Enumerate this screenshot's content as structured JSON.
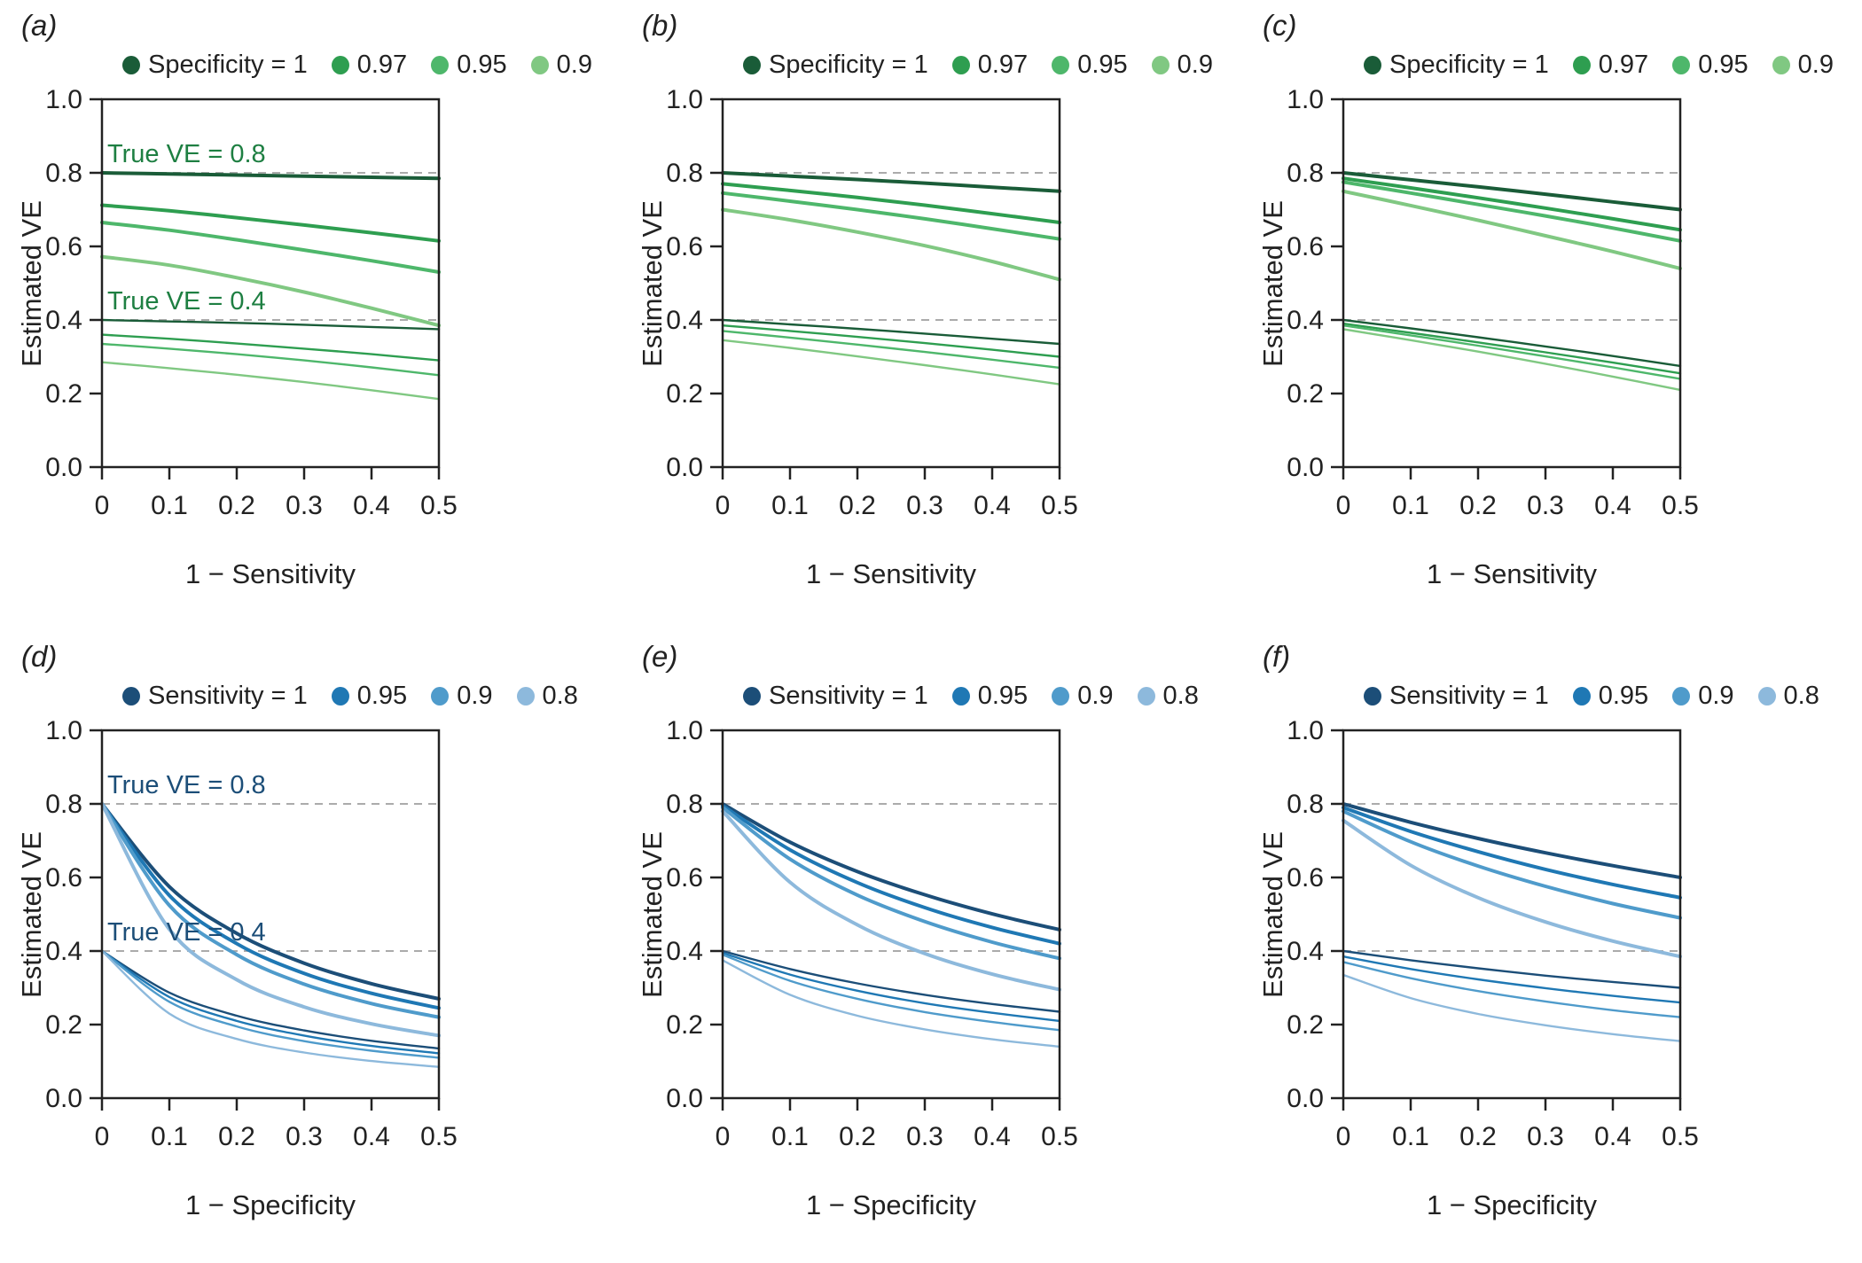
{
  "figure": {
    "yticks": [
      "0.0",
      "0.2",
      "0.4",
      "0.6",
      "0.8",
      "1.0"
    ],
    "xticks": [
      "0",
      "0.1",
      "0.2",
      "0.3",
      "0.4",
      "0.5"
    ],
    "palettes": {
      "greens": [
        "#1a5c38",
        "#2e9e50",
        "#4eb76b",
        "#80c882"
      ],
      "blues": [
        "#1c4e78",
        "#1f78b4",
        "#4f9bcb",
        "#8db9dc"
      ]
    },
    "annotation_colors": {
      "greens": "#1e7f42",
      "blues": "#1c4e78"
    },
    "axis_color": "#222222",
    "grid_color": "#ababab"
  },
  "chart_data": [
    {
      "type": "line",
      "panel_label": "(a)",
      "palette": "greens",
      "xlabel": "1 − Sensitivity",
      "ylabel": "Estimated VE",
      "xlim": [
        0,
        0.5
      ],
      "ylim": [
        0,
        1
      ],
      "x": [
        0,
        0.1,
        0.2,
        0.3,
        0.4,
        0.5
      ],
      "legend": [
        "Specificity = 1",
        "0.97",
        "0.95",
        "0.9"
      ],
      "reference_lines": [
        {
          "y": 0.8,
          "label": "True VE = 0.8"
        },
        {
          "y": 0.4,
          "label": "True VE = 0.4"
        }
      ],
      "series": [
        {
          "name": "Specificity = 1",
          "true_ve": 0.8,
          "color_index": 0,
          "values": [
            0.8,
            0.797,
            0.794,
            0.791,
            0.788,
            0.785
          ]
        },
        {
          "name": "Specificity = 0.97",
          "true_ve": 0.8,
          "color_index": 1,
          "values": [
            0.712,
            0.697,
            0.678,
            0.658,
            0.637,
            0.615
          ]
        },
        {
          "name": "Specificity = 0.95",
          "true_ve": 0.8,
          "color_index": 2,
          "values": [
            0.665,
            0.644,
            0.618,
            0.59,
            0.561,
            0.53
          ]
        },
        {
          "name": "Specificity = 0.9",
          "true_ve": 0.8,
          "color_index": 3,
          "values": [
            0.572,
            0.549,
            0.515,
            0.476,
            0.432,
            0.385
          ]
        },
        {
          "name": "Specificity = 1",
          "true_ve": 0.4,
          "color_index": 0,
          "values": [
            0.4,
            0.396,
            0.392,
            0.387,
            0.381,
            0.375
          ]
        },
        {
          "name": "Specificity = 0.97",
          "true_ve": 0.4,
          "color_index": 1,
          "values": [
            0.36,
            0.349,
            0.336,
            0.322,
            0.307,
            0.29
          ]
        },
        {
          "name": "Specificity = 0.95",
          "true_ve": 0.4,
          "color_index": 2,
          "values": [
            0.335,
            0.322,
            0.307,
            0.29,
            0.271,
            0.25
          ]
        },
        {
          "name": "Specificity = 0.9",
          "true_ve": 0.4,
          "color_index": 3,
          "values": [
            0.285,
            0.269,
            0.251,
            0.231,
            0.209,
            0.185
          ]
        }
      ]
    },
    {
      "type": "line",
      "panel_label": "(b)",
      "palette": "greens",
      "xlabel": "1 − Sensitivity",
      "ylabel": "Estimated VE",
      "xlim": [
        0,
        0.5
      ],
      "ylim": [
        0,
        1
      ],
      "x": [
        0,
        0.1,
        0.2,
        0.3,
        0.4,
        0.5
      ],
      "legend": [
        "Specificity = 1",
        "0.97",
        "0.95",
        "0.9"
      ],
      "reference_lines": [
        {
          "y": 0.8,
          "label": null
        },
        {
          "y": 0.4,
          "label": null
        }
      ],
      "series": [
        {
          "name": "Specificity = 1",
          "true_ve": 0.8,
          "color_index": 0,
          "values": [
            0.8,
            0.791,
            0.782,
            0.772,
            0.761,
            0.75
          ]
        },
        {
          "name": "Specificity = 0.97",
          "true_ve": 0.8,
          "color_index": 1,
          "values": [
            0.77,
            0.752,
            0.733,
            0.712,
            0.689,
            0.665
          ]
        },
        {
          "name": "Specificity = 0.95",
          "true_ve": 0.8,
          "color_index": 2,
          "values": [
            0.745,
            0.723,
            0.7,
            0.675,
            0.648,
            0.62
          ]
        },
        {
          "name": "Specificity = 0.9",
          "true_ve": 0.8,
          "color_index": 3,
          "values": [
            0.7,
            0.672,
            0.639,
            0.602,
            0.559,
            0.51
          ]
        },
        {
          "name": "Specificity = 1",
          "true_ve": 0.4,
          "color_index": 0,
          "values": [
            0.4,
            0.388,
            0.376,
            0.363,
            0.349,
            0.335
          ]
        },
        {
          "name": "Specificity = 0.97",
          "true_ve": 0.4,
          "color_index": 1,
          "values": [
            0.385,
            0.37,
            0.354,
            0.337,
            0.319,
            0.3
          ]
        },
        {
          "name": "Specificity = 0.95",
          "true_ve": 0.4,
          "color_index": 2,
          "values": [
            0.37,
            0.352,
            0.333,
            0.313,
            0.292,
            0.27
          ]
        },
        {
          "name": "Specificity = 0.9",
          "true_ve": 0.4,
          "color_index": 3,
          "values": [
            0.345,
            0.324,
            0.301,
            0.277,
            0.252,
            0.225
          ]
        }
      ]
    },
    {
      "type": "line",
      "panel_label": "(c)",
      "palette": "greens",
      "xlabel": "1 − Sensitivity",
      "ylabel": "Estimated VE",
      "xlim": [
        0,
        0.5
      ],
      "ylim": [
        0,
        1
      ],
      "x": [
        0,
        0.1,
        0.2,
        0.3,
        0.4,
        0.5
      ],
      "legend": [
        "Specificity = 1",
        "0.97",
        "0.95",
        "0.9"
      ],
      "reference_lines": [
        {
          "y": 0.8,
          "label": null
        },
        {
          "y": 0.4,
          "label": null
        }
      ],
      "series": [
        {
          "name": "Specificity = 1",
          "true_ve": 0.8,
          "color_index": 0,
          "values": [
            0.8,
            0.781,
            0.762,
            0.742,
            0.721,
            0.7
          ]
        },
        {
          "name": "Specificity = 0.97",
          "true_ve": 0.8,
          "color_index": 1,
          "values": [
            0.785,
            0.759,
            0.732,
            0.704,
            0.675,
            0.645
          ]
        },
        {
          "name": "Specificity = 0.95",
          "true_ve": 0.8,
          "color_index": 2,
          "values": [
            0.775,
            0.745,
            0.714,
            0.683,
            0.65,
            0.615
          ]
        },
        {
          "name": "Specificity = 0.9",
          "true_ve": 0.8,
          "color_index": 3,
          "values": [
            0.75,
            0.711,
            0.671,
            0.629,
            0.586,
            0.54
          ]
        },
        {
          "name": "Specificity = 1",
          "true_ve": 0.4,
          "color_index": 0,
          "values": [
            0.4,
            0.377,
            0.353,
            0.328,
            0.302,
            0.275
          ]
        },
        {
          "name": "Specificity = 0.97",
          "true_ve": 0.4,
          "color_index": 1,
          "values": [
            0.39,
            0.365,
            0.339,
            0.312,
            0.284,
            0.255
          ]
        },
        {
          "name": "Specificity = 0.95",
          "true_ve": 0.4,
          "color_index": 2,
          "values": [
            0.385,
            0.358,
            0.33,
            0.301,
            0.271,
            0.24
          ]
        },
        {
          "name": "Specificity = 0.9",
          "true_ve": 0.4,
          "color_index": 3,
          "values": [
            0.375,
            0.345,
            0.314,
            0.281,
            0.246,
            0.21
          ]
        }
      ]
    },
    {
      "type": "line",
      "panel_label": "(d)",
      "palette": "blues",
      "xlabel": "1 − Specificity",
      "ylabel": "Estimated VE",
      "xlim": [
        0,
        0.5
      ],
      "ylim": [
        0,
        1
      ],
      "x": [
        0,
        0.1,
        0.2,
        0.3,
        0.4,
        0.5
      ],
      "legend": [
        "Sensitivity = 1",
        "0.95",
        "0.9",
        "0.8"
      ],
      "reference_lines": [
        {
          "y": 0.8,
          "label": "True VE = 0.8"
        },
        {
          "y": 0.4,
          "label": "True VE = 0.4"
        }
      ],
      "series": [
        {
          "name": "Sensitivity = 1",
          "true_ve": 0.8,
          "color_index": 0,
          "values": [
            0.8,
            0.575,
            0.448,
            0.367,
            0.311,
            0.27
          ]
        },
        {
          "name": "Sensitivity = 0.95",
          "true_ve": 0.8,
          "color_index": 1,
          "values": [
            0.8,
            0.551,
            0.42,
            0.339,
            0.285,
            0.245
          ]
        },
        {
          "name": "Sensitivity = 0.9",
          "true_ve": 0.8,
          "color_index": 2,
          "values": [
            0.8,
            0.524,
            0.39,
            0.31,
            0.257,
            0.22
          ]
        },
        {
          "name": "Sensitivity = 0.8",
          "true_ve": 0.8,
          "color_index": 3,
          "values": [
            0.8,
            0.459,
            0.322,
            0.248,
            0.202,
            0.17
          ]
        },
        {
          "name": "Sensitivity = 1",
          "true_ve": 0.4,
          "color_index": 0,
          "values": [
            0.4,
            0.287,
            0.224,
            0.184,
            0.156,
            0.135
          ]
        },
        {
          "name": "Sensitivity = 0.95",
          "true_ve": 0.4,
          "color_index": 1,
          "values": [
            0.4,
            0.275,
            0.21,
            0.17,
            0.142,
            0.122
          ]
        },
        {
          "name": "Sensitivity = 0.9",
          "true_ve": 0.4,
          "color_index": 2,
          "values": [
            0.4,
            0.262,
            0.195,
            0.155,
            0.129,
            0.11
          ]
        },
        {
          "name": "Sensitivity = 0.8",
          "true_ve": 0.4,
          "color_index": 3,
          "values": [
            0.4,
            0.23,
            0.161,
            0.124,
            0.101,
            0.085
          ]
        }
      ]
    },
    {
      "type": "line",
      "panel_label": "(e)",
      "palette": "blues",
      "xlabel": "1 − Specificity",
      "ylabel": "Estimated VE",
      "xlim": [
        0,
        0.5
      ],
      "ylim": [
        0,
        1
      ],
      "x": [
        0,
        0.1,
        0.2,
        0.3,
        0.4,
        0.5
      ],
      "legend": [
        "Sensitivity = 1",
        "0.95",
        "0.9",
        "0.8"
      ],
      "reference_lines": [
        {
          "y": 0.8,
          "label": null
        },
        {
          "y": 0.4,
          "label": null
        }
      ],
      "series": [
        {
          "name": "Sensitivity = 1",
          "true_ve": 0.8,
          "color_index": 0,
          "values": [
            0.8,
            0.696,
            0.616,
            0.553,
            0.501,
            0.458
          ]
        },
        {
          "name": "Sensitivity = 0.95",
          "true_ve": 0.8,
          "color_index": 1,
          "values": [
            0.795,
            0.675,
            0.586,
            0.518,
            0.464,
            0.42
          ]
        },
        {
          "name": "Sensitivity = 0.9",
          "true_ve": 0.8,
          "color_index": 2,
          "values": [
            0.79,
            0.65,
            0.552,
            0.48,
            0.424,
            0.38
          ]
        },
        {
          "name": "Sensitivity = 0.8",
          "true_ve": 0.8,
          "color_index": 3,
          "values": [
            0.78,
            0.587,
            0.471,
            0.393,
            0.337,
            0.295
          ]
        },
        {
          "name": "Sensitivity = 1",
          "true_ve": 0.4,
          "color_index": 0,
          "values": [
            0.4,
            0.351,
            0.312,
            0.281,
            0.256,
            0.235
          ]
        },
        {
          "name": "Sensitivity = 0.95",
          "true_ve": 0.4,
          "color_index": 1,
          "values": [
            0.395,
            0.336,
            0.292,
            0.258,
            0.232,
            0.21
          ]
        },
        {
          "name": "Sensitivity = 0.9",
          "true_ve": 0.4,
          "color_index": 2,
          "values": [
            0.39,
            0.319,
            0.27,
            0.234,
            0.207,
            0.185
          ]
        },
        {
          "name": "Sensitivity = 0.8",
          "true_ve": 0.4,
          "color_index": 3,
          "values": [
            0.375,
            0.281,
            0.224,
            0.187,
            0.16,
            0.14
          ]
        }
      ]
    },
    {
      "type": "line",
      "panel_label": "(f)",
      "palette": "blues",
      "xlabel": "1 − Specificity",
      "ylabel": "Estimated VE",
      "xlim": [
        0,
        0.5
      ],
      "ylim": [
        0,
        1
      ],
      "x": [
        0,
        0.1,
        0.2,
        0.3,
        0.4,
        0.5
      ],
      "legend": [
        "Sensitivity = 1",
        "0.95",
        "0.9",
        "0.8"
      ],
      "reference_lines": [
        {
          "y": 0.8,
          "label": null
        },
        {
          "y": 0.4,
          "label": null
        }
      ],
      "series": [
        {
          "name": "Sensitivity = 1",
          "true_ve": 0.8,
          "color_index": 0,
          "values": [
            0.8,
            0.75,
            0.706,
            0.667,
            0.632,
            0.6
          ]
        },
        {
          "name": "Sensitivity = 0.95",
          "true_ve": 0.8,
          "color_index": 1,
          "values": [
            0.79,
            0.725,
            0.67,
            0.622,
            0.581,
            0.545
          ]
        },
        {
          "name": "Sensitivity = 0.9",
          "true_ve": 0.8,
          "color_index": 2,
          "values": [
            0.78,
            0.697,
            0.631,
            0.576,
            0.529,
            0.49
          ]
        },
        {
          "name": "Sensitivity = 0.8",
          "true_ve": 0.8,
          "color_index": 3,
          "values": [
            0.755,
            0.633,
            0.545,
            0.479,
            0.427,
            0.385
          ]
        },
        {
          "name": "Sensitivity = 1",
          "true_ve": 0.4,
          "color_index": 0,
          "values": [
            0.4,
            0.375,
            0.353,
            0.333,
            0.316,
            0.3
          ]
        },
        {
          "name": "Sensitivity = 0.95",
          "true_ve": 0.4,
          "color_index": 1,
          "values": [
            0.385,
            0.351,
            0.323,
            0.299,
            0.278,
            0.26
          ]
        },
        {
          "name": "Sensitivity = 0.9",
          "true_ve": 0.4,
          "color_index": 2,
          "values": [
            0.37,
            0.326,
            0.291,
            0.263,
            0.239,
            0.22
          ]
        },
        {
          "name": "Sensitivity = 0.8",
          "true_ve": 0.4,
          "color_index": 3,
          "values": [
            0.335,
            0.272,
            0.229,
            0.198,
            0.174,
            0.155
          ]
        }
      ]
    }
  ]
}
